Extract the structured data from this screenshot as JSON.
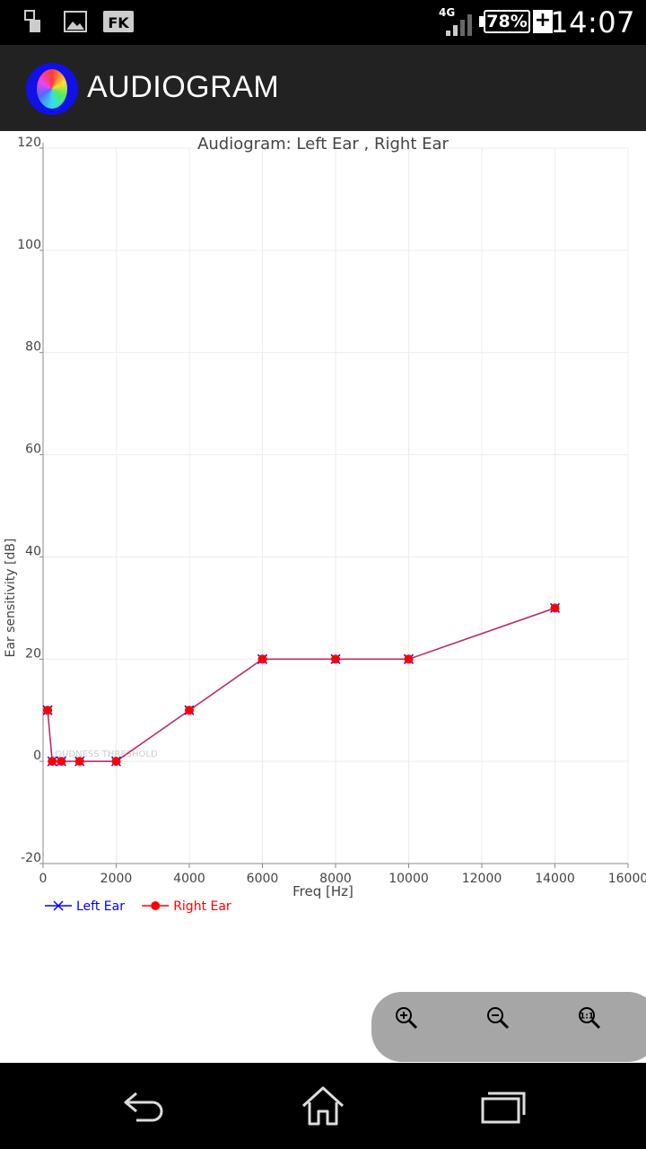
{
  "status_bar": {
    "network": "4G",
    "battery": "78%",
    "charging": "+",
    "time": "14:07",
    "icons": [
      "sd-card-icon",
      "image-icon",
      "fk-icon",
      "signal-icon",
      "battery-icon"
    ]
  },
  "action_bar": {
    "title": "AUDIOGRAM",
    "icon": "color-wheel-icon"
  },
  "chart_data": {
    "type": "line",
    "title": "Audiogram: Left Ear , Right Ear",
    "xlabel": "Freq [Hz]",
    "ylabel": "Ear sensitivity [dB]",
    "xlim": [
      0,
      16000
    ],
    "ylim": [
      -20,
      120
    ],
    "xticks": [
      0,
      2000,
      4000,
      6000,
      8000,
      10000,
      12000,
      14000,
      16000
    ],
    "yticks": [
      -20,
      0,
      20,
      40,
      60,
      80,
      100,
      120
    ],
    "grid": true,
    "reference_line": {
      "y": 0,
      "label": "LOUDNESS THRESHOLD"
    },
    "legend_position": "bottom-left",
    "series": [
      {
        "name": "Left Ear",
        "color": "#0000ff",
        "marker": "x",
        "x": [
          125,
          250,
          500,
          1000,
          2000,
          4000,
          6000,
          8000,
          10000,
          14000
        ],
        "y": [
          10,
          0,
          0,
          0,
          0,
          10,
          20,
          20,
          20,
          30
        ]
      },
      {
        "name": "Right Ear",
        "color": "#ff0000",
        "marker": "circle",
        "x": [
          125,
          250,
          500,
          1000,
          2000,
          4000,
          6000,
          8000,
          10000,
          14000
        ],
        "y": [
          10,
          0,
          0,
          0,
          0,
          10,
          20,
          20,
          20,
          30
        ]
      }
    ]
  },
  "zoom_controls": {
    "buttons": [
      "zoom-in-icon",
      "zoom-out-icon",
      "zoom-reset-icon"
    ]
  },
  "nav_bar": {
    "buttons": [
      "back-icon",
      "home-icon",
      "recents-icon"
    ]
  }
}
